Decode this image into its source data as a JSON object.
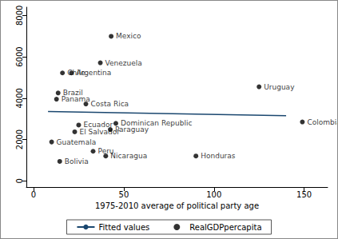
{
  "chart_data": {
    "type": "scatter",
    "x_label": "1975-2010 average of political party age",
    "xlim": [
      -4,
      163
    ],
    "xticks": [
      0,
      50,
      100,
      150
    ],
    "ylim": [
      -300,
      8400
    ],
    "yticks": [
      0,
      2000,
      4000,
      6000,
      8000
    ],
    "grid": false,
    "legend": "bottom",
    "series": [
      {
        "name": "Fitted values",
        "type": "line",
        "color": "#1a476f",
        "line_style": "solid",
        "x": [
          8,
          140
        ],
        "values": [
          3350,
          3150
        ]
      },
      {
        "name": "RealGDPpercapita",
        "type": "scatter",
        "color": "#000000",
        "marker": "circle",
        "labels": [
          "Mexico",
          "Venezuela",
          "Chile",
          "Argentina",
          "Brazil",
          "Panama",
          "Costa Rica",
          "Uruguay",
          "Colombia",
          "Ecuador",
          "Dominican Republic",
          "Paraguay",
          "El Salvador",
          "Guatemala",
          "Peru",
          "Nicaragua",
          "Honduras",
          "Bolivia"
        ],
        "x": [
          43,
          37,
          16,
          21,
          13.6,
          12.7,
          29,
          125,
          149,
          25,
          45.6,
          42.5,
          22.8,
          10,
          33,
          40,
          90,
          14.5
        ],
        "values": [
          6990,
          5710,
          5220,
          5220,
          4250,
          3950,
          3720,
          4550,
          2850,
          2700,
          2780,
          2480,
          2370,
          1880,
          1430,
          1200,
          1200,
          940
        ]
      }
    ]
  }
}
